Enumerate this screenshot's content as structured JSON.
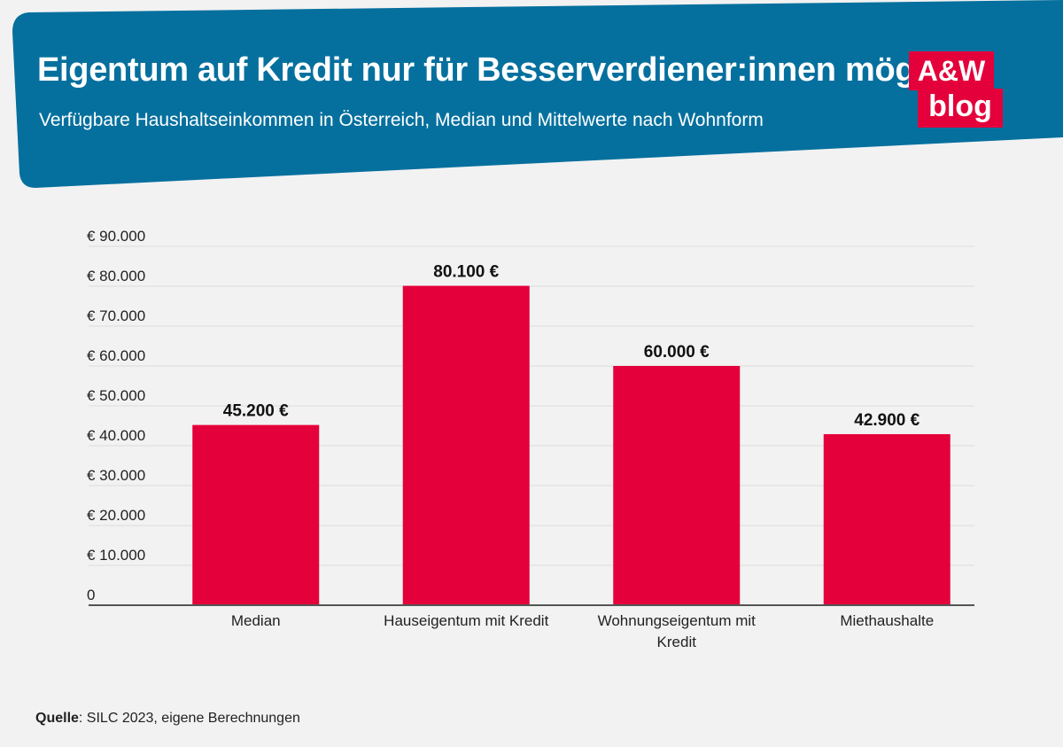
{
  "header": {
    "title": "Eigentum auf Kredit nur für Besserverdiener:innen möglich",
    "subtitle": "Verfügbare Haushaltseinkommen in Österreich, Median und Mittelwerte nach Wohnform",
    "band_color": "#05709e"
  },
  "logo": {
    "line1": "A&W",
    "line2": "blog",
    "color": "#e4003a"
  },
  "source": {
    "label": "Quelle",
    "text": ": SILC 2023, eigene Berechnungen"
  },
  "chart_data": {
    "type": "bar",
    "title": "Eigentum auf Kredit nur für Besserverdiener:innen möglich",
    "subtitle": "Verfügbare Haushaltseinkommen in Österreich, Median und Mittelwerte nach Wohnform",
    "categories": [
      [
        "Median"
      ],
      [
        "Hauseigentum mit Kredit"
      ],
      [
        "Wohnungseigentum mit",
        "Kredit"
      ],
      [
        "Miethaushalte"
      ]
    ],
    "values": [
      45200,
      80100,
      60000,
      42900
    ],
    "data_labels": [
      "45.200 €",
      "80.100 €",
      "60.000 €",
      "42.900 €"
    ],
    "y_ticks": [
      0,
      10000,
      20000,
      30000,
      40000,
      50000,
      60000,
      70000,
      80000,
      90000
    ],
    "y_tick_labels": [
      "0",
      "€ 10.000",
      "€ 20.000",
      "€ 30.000",
      "€ 40.000",
      "€ 50.000",
      "€ 60.000",
      "€ 70.000",
      "€ 80.000",
      "€ 90.000"
    ],
    "ylim": [
      0,
      90000
    ],
    "xlabel": "",
    "ylabel": "",
    "grid": true,
    "bar_color": "#e4003a"
  }
}
